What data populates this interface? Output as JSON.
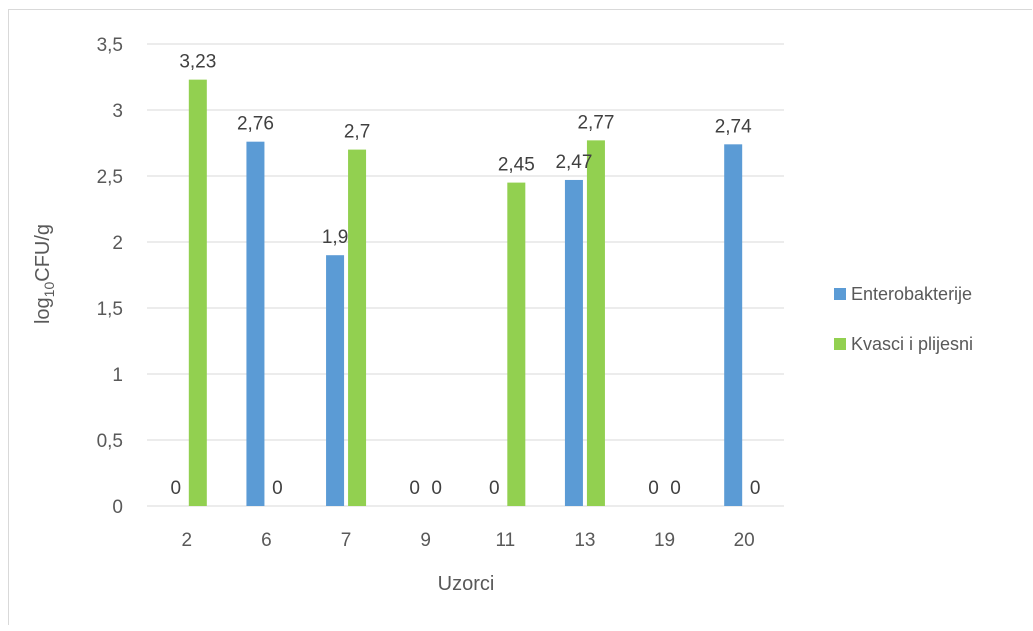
{
  "chart_data": {
    "type": "bar",
    "categories": [
      "2",
      "6",
      "7",
      "9",
      "11",
      "13",
      "19",
      "20"
    ],
    "series": [
      {
        "name": "Enterobakterije",
        "color": "#5b9bd5",
        "values": [
          0,
          2.76,
          1.9,
          0,
          0,
          2.47,
          0,
          2.74
        ],
        "labels": [
          "0",
          "2,76",
          "1,9",
          "0",
          "0",
          "2,47",
          "0",
          "2,74"
        ]
      },
      {
        "name": "Kvasci i plijesni",
        "color": "#92d050",
        "values": [
          3.23,
          0,
          2.7,
          0,
          2.45,
          2.77,
          0,
          0
        ],
        "labels": [
          "3,23",
          "0",
          "2,7",
          "0",
          "2,45",
          "2,77",
          "0",
          "0"
        ]
      }
    ],
    "xlabel": "Uzorci",
    "ylabel_main": "log",
    "ylabel_sub": "10",
    "ylabel_rest": "CFU/g",
    "ylim": [
      0,
      3.5
    ],
    "yticks": [
      0,
      0.5,
      1,
      1.5,
      2,
      2.5,
      3,
      3.5
    ],
    "ytick_labels": [
      "0",
      "0,5",
      "1",
      "1,5",
      "2",
      "2,5",
      "3",
      "3,5"
    ],
    "grid": true,
    "legend_position": "right"
  }
}
